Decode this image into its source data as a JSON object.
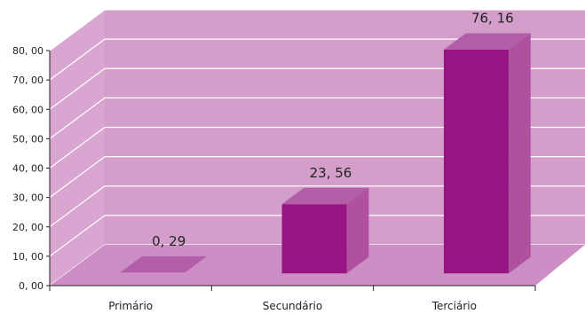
{
  "chart_data": {
    "type": "bar",
    "title": "",
    "xlabel": "",
    "ylabel": "",
    "categories": [
      "Primário",
      "Secundário",
      "Terciário"
    ],
    "values": [
      0.29,
      23.56,
      76.16
    ],
    "data_labels": [
      "0, 29",
      "23, 56",
      "76, 16"
    ],
    "ylim": [
      0,
      80
    ],
    "y_ticks": [
      0,
      10,
      20,
      30,
      40,
      50,
      60,
      70,
      80
    ],
    "y_tick_labels": [
      "0, 00",
      "10, 00",
      "20, 00",
      "30, 00",
      "40, 00",
      "50, 00",
      "60, 00",
      "70, 00",
      "80, 00"
    ],
    "grid": true,
    "style": "3d-column",
    "colors": {
      "wall": "#d49ecb",
      "floor": "#cc8ec4",
      "side_wall": "#d9a5d1",
      "gridline": "#ffffff",
      "bar_front": "#961583",
      "bar_side": "#b0519f",
      "bar_top": "#b25ea8",
      "axis": "#222222"
    }
  }
}
